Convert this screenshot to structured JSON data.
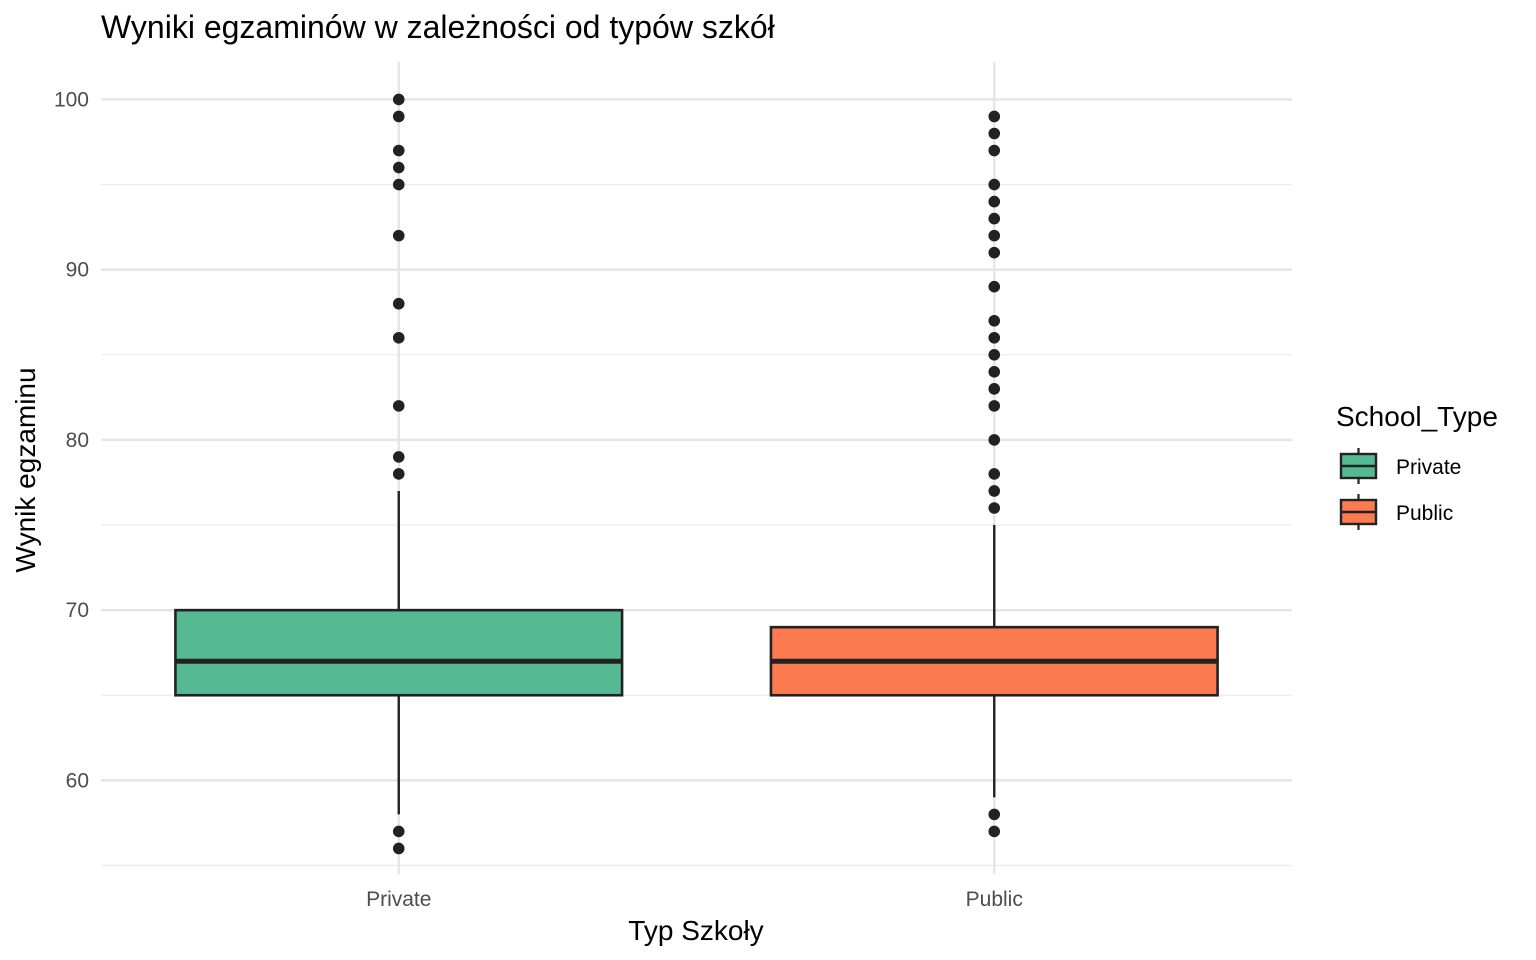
{
  "chart_data": {
    "type": "boxplot",
    "title": "Wyniki egzaminów w zależności od typów szkół",
    "xlabel": "Typ Szkoły",
    "ylabel": "Wynik egzaminu",
    "ylim": [
      54.5,
      102.2
    ],
    "yticks": [
      60,
      70,
      80,
      90,
      100
    ],
    "grid": true,
    "legend": {
      "title": "School_Type",
      "position": "right"
    },
    "categories": [
      "Private",
      "Public"
    ],
    "series": [
      {
        "name": "Private",
        "color": "#55b993",
        "q1": 65,
        "median": 67,
        "q3": 70,
        "whisker_low": 58,
        "whisker_high": 77,
        "outliers": [
          100,
          99,
          97,
          96,
          95,
          92,
          88,
          86,
          82,
          79,
          78,
          57,
          56
        ]
      },
      {
        "name": "Public",
        "color": "#fb7a50",
        "q1": 65,
        "median": 67,
        "q3": 69,
        "whisker_low": 59,
        "whisker_high": 75,
        "outliers": [
          99,
          98,
          97,
          95,
          94,
          93,
          92,
          91,
          89,
          87,
          86,
          85,
          84,
          83,
          82,
          80,
          78,
          77,
          76,
          58,
          57
        ]
      }
    ]
  }
}
